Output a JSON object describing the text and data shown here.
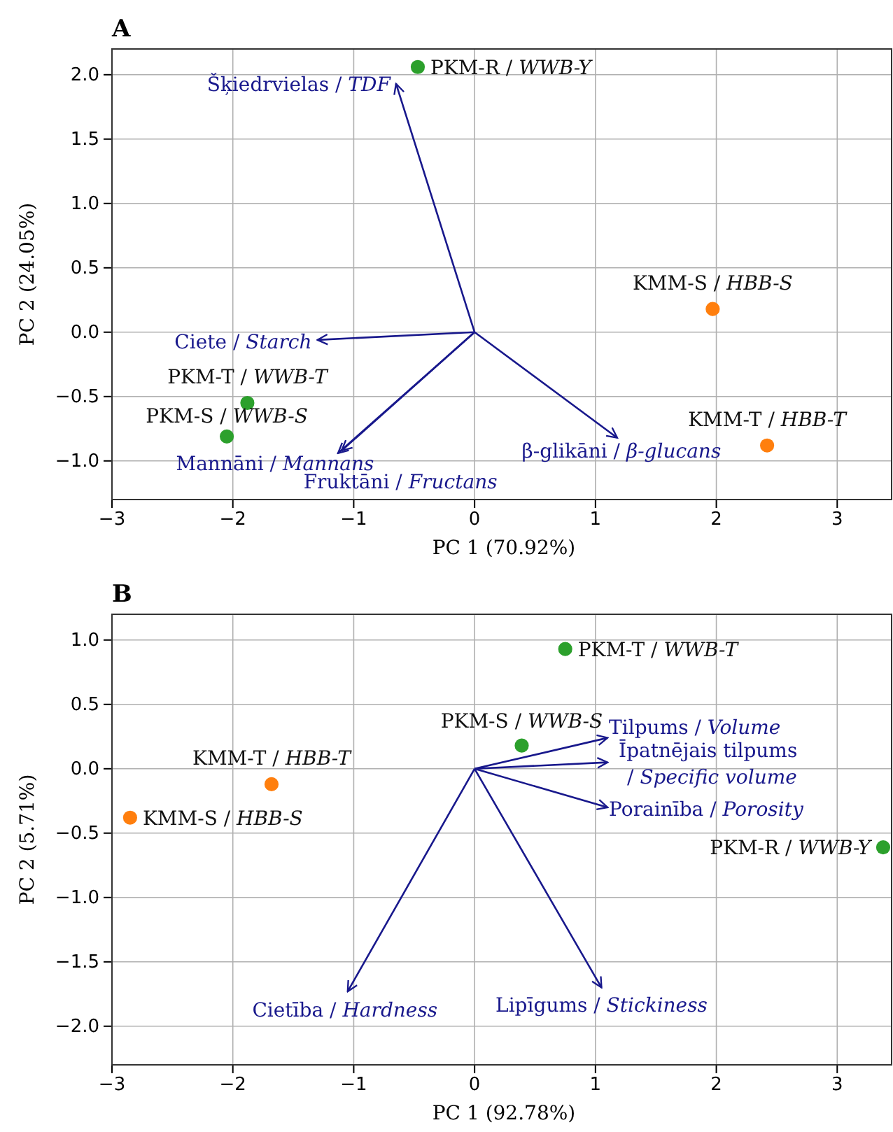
{
  "chart_data": [
    {
      "type": "scatter",
      "title": "A",
      "xlabel": "PC 1 (70.92%)",
      "ylabel": "PC 2 (24.05%)",
      "xlim": [
        -3,
        3.45
      ],
      "ylim": [
        -1.3,
        2.2
      ],
      "xticks": [
        {
          "value": -3,
          "label": "−3"
        },
        {
          "value": -2,
          "label": "−2"
        },
        {
          "value": -1,
          "label": "−1"
        },
        {
          "value": 0,
          "label": "0"
        },
        {
          "value": 1,
          "label": "1"
        },
        {
          "value": 2,
          "label": "2"
        },
        {
          "value": 3,
          "label": "3"
        }
      ],
      "yticks": [
        {
          "value": -1,
          "label": "−1.0"
        },
        {
          "value": -0.5,
          "label": "−0.5"
        },
        {
          "value": 0,
          "label": "0.0"
        },
        {
          "value": 0.5,
          "label": "0.5"
        },
        {
          "value": 1,
          "label": "1.0"
        },
        {
          "value": 1.5,
          "label": "1.5"
        },
        {
          "value": 2,
          "label": "2.0"
        }
      ],
      "grid": true,
      "series": [
        {
          "marker": "circle",
          "color": "#2ca02c",
          "x": [
            -0.47,
            -1.88,
            -2.05
          ],
          "values": [
            2.06,
            -0.55,
            -0.81
          ]
        },
        {
          "marker": "circle",
          "color": "#ff7f0e",
          "x": [
            1.97,
            2.42
          ],
          "values": [
            0.18,
            -0.88
          ]
        },
        {
          "type": "line",
          "name": "Šķiedrvielas / TDF",
          "color": "#18188c",
          "x": [
            0,
            -0.65
          ],
          "values": [
            0,
            1.93
          ]
        },
        {
          "type": "line",
          "name": "Ciete / Starch",
          "color": "#18188c",
          "x": [
            0,
            -1.3
          ],
          "values": [
            0,
            -0.06
          ]
        },
        {
          "type": "line",
          "name": "Mannāni / Mannans",
          "color": "#18188c",
          "x": [
            0,
            -1.13
          ],
          "values": [
            0,
            -0.94
          ]
        },
        {
          "type": "line",
          "name": "Fruktāni / Fructans",
          "color": "#18188c",
          "x": [
            0,
            -1.1
          ],
          "values": [
            0,
            -0.92
          ]
        },
        {
          "type": "line",
          "name": "β-glikāni / β-glucans",
          "color": "#18188c",
          "x": [
            0,
            1.18
          ],
          "values": [
            0,
            -0.82
          ]
        }
      ],
      "annotations": [
        {
          "text": "PKM-R / WWB-Y",
          "x": -0.47,
          "y": 2.06
        },
        {
          "text": "PKM-T / WWB-T",
          "x": -1.88,
          "y": -0.55
        },
        {
          "text": "PKM-S / WWB-S",
          "x": -2.05,
          "y": -0.81
        },
        {
          "text": "KMM-S / HBB-S",
          "x": 1.97,
          "y": 0.18
        },
        {
          "text": "KMM-T / HBB-T",
          "x": 2.42,
          "y": -0.88
        }
      ]
    },
    {
      "type": "scatter",
      "title": "B",
      "xlabel": "PC 1 (92.78%)",
      "ylabel": "PC 2 (5.71%)",
      "xlim": [
        -3,
        3.45
      ],
      "ylim": [
        -2.3,
        1.2
      ],
      "xticks": [
        {
          "value": -3,
          "label": "−3"
        },
        {
          "value": -2,
          "label": "−2"
        },
        {
          "value": -1,
          "label": "−1"
        },
        {
          "value": 0,
          "label": "0"
        },
        {
          "value": 1,
          "label": "1"
        },
        {
          "value": 2,
          "label": "2"
        },
        {
          "value": 3,
          "label": "3"
        }
      ],
      "yticks": [
        {
          "value": -2,
          "label": "−2.0"
        },
        {
          "value": -1.5,
          "label": "−1.5"
        },
        {
          "value": -1,
          "label": "−1.0"
        },
        {
          "value": -0.5,
          "label": "−0.5"
        },
        {
          "value": 0,
          "label": "0.0"
        },
        {
          "value": 0.5,
          "label": "0.5"
        },
        {
          "value": 1,
          "label": "1.0"
        }
      ],
      "grid": true,
      "series": [
        {
          "marker": "circle",
          "color": "#2ca02c",
          "x": [
            0.75,
            0.39,
            3.38
          ],
          "values": [
            0.93,
            0.18,
            -0.61
          ]
        },
        {
          "marker": "circle",
          "color": "#ff7f0e",
          "x": [
            -1.68,
            -2.85
          ],
          "values": [
            -0.12,
            -0.38
          ]
        },
        {
          "type": "line",
          "name": "Tilpums / Volume",
          "color": "#18188c",
          "x": [
            0,
            1.1
          ],
          "values": [
            0,
            0.24
          ]
        },
        {
          "type": "line",
          "name": "Īpatnējais tilpums / Specific volume",
          "color": "#18188c",
          "x": [
            0,
            1.1
          ],
          "values": [
            0,
            0.05
          ]
        },
        {
          "type": "line",
          "name": "Porainība / Porosity",
          "color": "#18188c",
          "x": [
            0,
            1.1
          ],
          "values": [
            0,
            -0.3
          ]
        },
        {
          "type": "line",
          "name": "Cietība / Hardness",
          "color": "#18188c",
          "x": [
            0,
            -1.05
          ],
          "values": [
            0,
            -1.73
          ]
        },
        {
          "type": "line",
          "name": "Lipīgums / Stickiness",
          "color": "#18188c",
          "x": [
            0,
            1.05
          ],
          "values": [
            0,
            -1.7
          ]
        }
      ],
      "annotations": [
        {
          "text": "PKM-T / WWB-T",
          "x": 0.75,
          "y": 0.93
        },
        {
          "text": "PKM-S / WWB-S",
          "x": 0.39,
          "y": 0.18
        },
        {
          "text": "PKM-R / WWB-Y",
          "x": 3.38,
          "y": -0.61
        },
        {
          "text": "KMM-T / HBB-T",
          "x": -1.68,
          "y": -0.12
        },
        {
          "text": "KMM-S / HBB-S",
          "x": -2.85,
          "y": -0.38
        }
      ]
    }
  ]
}
